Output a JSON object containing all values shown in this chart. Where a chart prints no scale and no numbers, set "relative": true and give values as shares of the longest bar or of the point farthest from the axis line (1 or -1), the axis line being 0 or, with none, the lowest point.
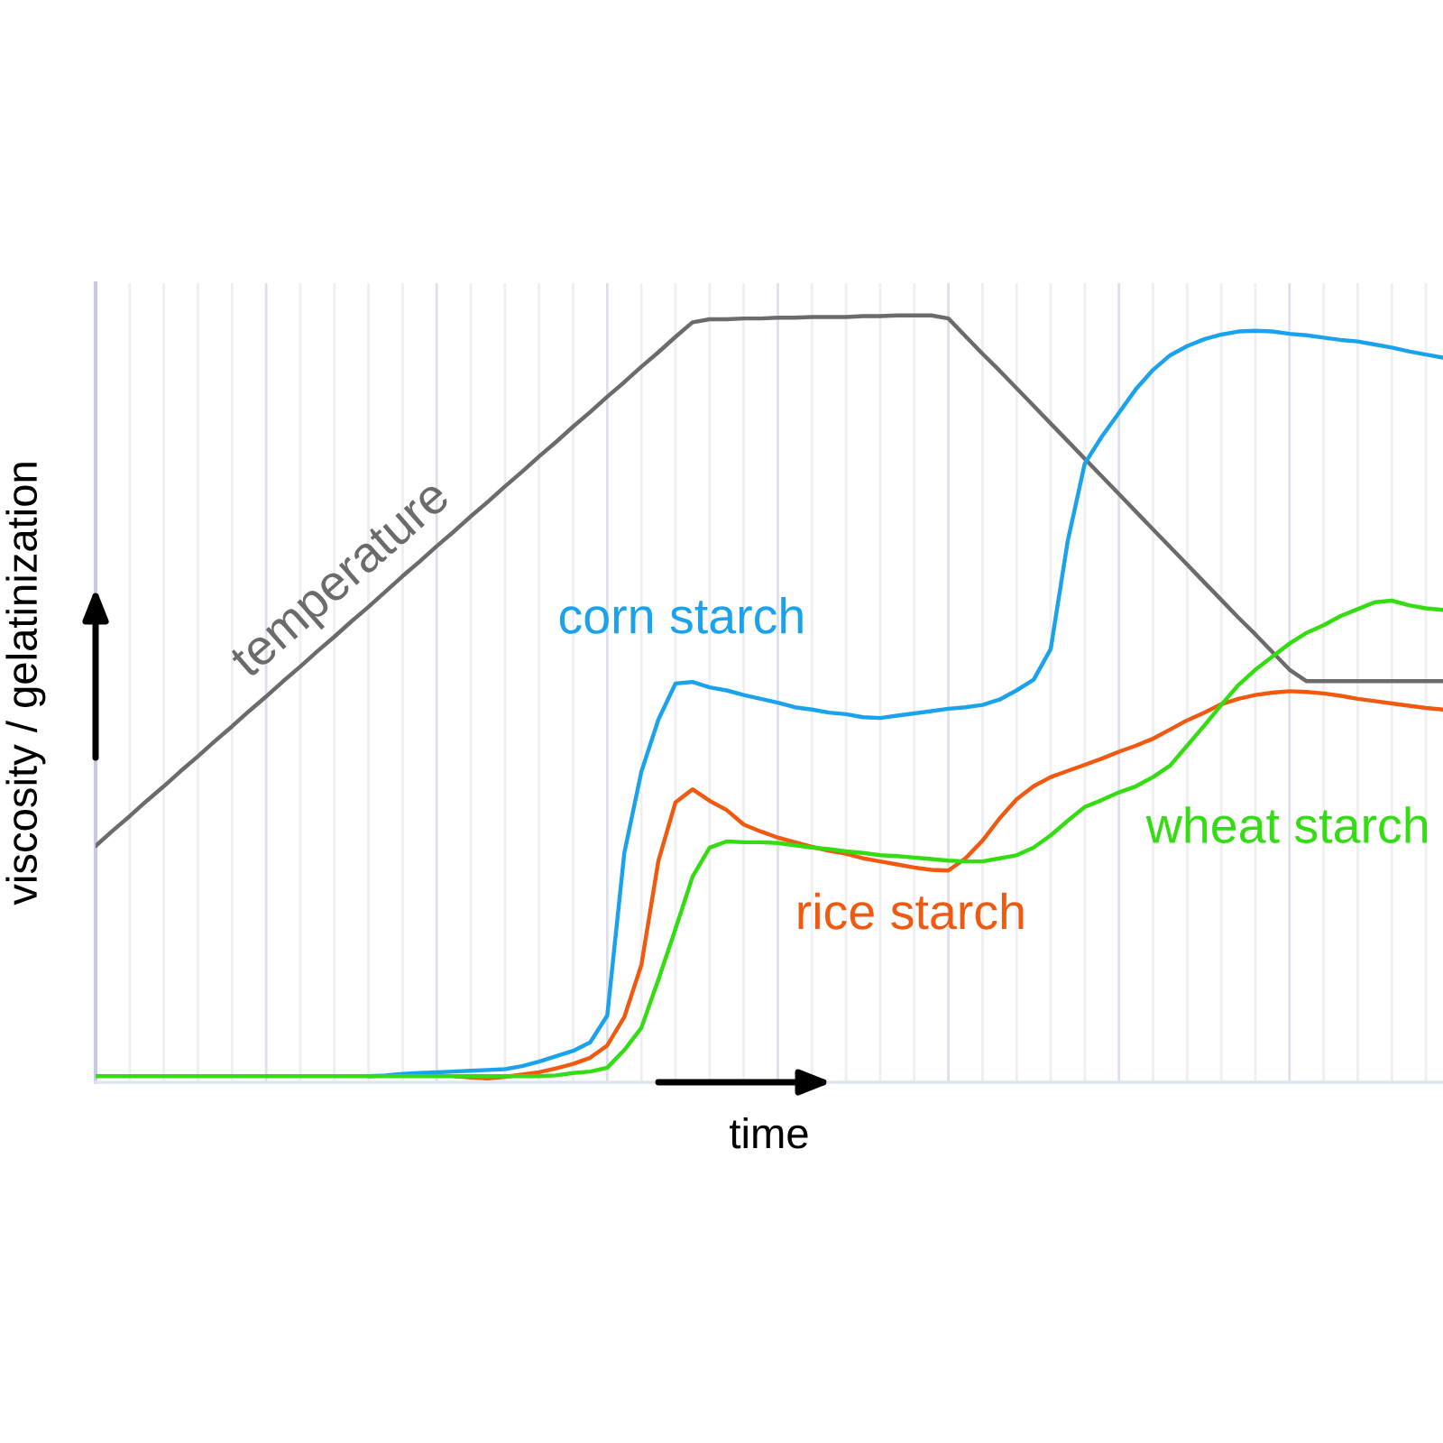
{
  "chart_data": {
    "type": "line",
    "relative": true,
    "grid": "x",
    "tick_labels": false,
    "xlabel": "time",
    "ylabel": "viscosity / gelatinization",
    "categories": [
      null,
      null,
      null,
      null,
      null,
      null,
      null,
      null,
      null,
      null,
      null,
      null,
      null,
      null,
      null,
      null,
      null,
      null,
      null,
      null,
      null,
      null,
      null,
      null,
      null,
      null,
      null,
      null,
      null,
      null,
      null,
      null,
      null,
      null,
      null,
      null,
      null,
      null,
      null,
      null,
      null,
      null,
      null,
      null,
      null,
      null,
      null,
      null,
      null,
      null,
      null,
      null,
      null,
      null,
      null,
      null,
      null,
      null,
      null,
      null,
      null,
      null,
      null,
      null,
      null,
      null,
      null,
      null,
      null,
      null,
      null,
      null,
      null,
      null,
      null,
      null,
      null,
      null,
      null,
      null
    ],
    "series": [
      {
        "name": "temperature",
        "color": "#6b6b6b",
        "values": [
          0.308,
          0.328,
          0.347,
          0.367,
          0.386,
          0.406,
          0.425,
          0.445,
          0.464,
          0.484,
          0.503,
          0.523,
          0.542,
          0.562,
          0.581,
          0.601,
          0.62,
          0.64,
          0.66,
          0.679,
          0.699,
          0.718,
          0.738,
          0.757,
          0.777,
          0.796,
          0.816,
          0.835,
          0.855,
          0.874,
          0.894,
          0.913,
          0.933,
          0.952,
          0.972,
          0.991,
          0.995,
          0.995,
          0.996,
          0.996,
          0.997,
          0.997,
          0.998,
          0.998,
          0.998,
          0.999,
          0.999,
          1.0,
          1.0,
          1.0,
          0.996,
          0.973,
          0.95,
          0.928,
          0.905,
          0.882,
          0.859,
          0.836,
          0.813,
          0.79,
          0.767,
          0.744,
          0.721,
          0.698,
          0.675,
          0.652,
          0.629,
          0.606,
          0.584,
          0.561,
          0.538,
          0.523,
          0.523,
          0.523,
          0.523,
          0.523,
          0.523,
          0.523,
          0.523,
          0.523
        ]
      },
      {
        "name": "corn starch",
        "color": "#1aa3ec",
        "values": [
          null,
          null,
          null,
          null,
          null,
          null,
          null,
          null,
          null,
          null,
          null,
          null,
          null,
          null,
          null,
          null,
          0.008,
          0.009,
          0.011,
          0.012,
          0.013,
          0.014,
          0.015,
          0.016,
          0.017,
          0.021,
          0.027,
          0.034,
          0.041,
          0.052,
          0.087,
          0.299,
          0.405,
          0.473,
          0.52,
          0.522,
          0.515,
          0.511,
          0.505,
          0.5,
          0.495,
          0.489,
          0.486,
          0.482,
          0.48,
          0.476,
          0.475,
          0.478,
          0.481,
          0.484,
          0.487,
          0.489,
          0.492,
          0.499,
          0.511,
          0.525,
          0.565,
          0.706,
          0.807,
          0.842,
          0.873,
          0.904,
          0.929,
          0.948,
          0.96,
          0.969,
          0.975,
          0.979,
          0.98,
          0.979,
          0.976,
          0.974,
          0.971,
          0.968,
          0.966,
          0.962,
          0.958,
          0.953,
          0.949,
          0.945
        ]
      },
      {
        "name": "rice starch",
        "color": "#f05a10",
        "values": [
          null,
          null,
          null,
          null,
          null,
          null,
          null,
          null,
          null,
          null,
          null,
          null,
          null,
          null,
          null,
          null,
          null,
          null,
          null,
          null,
          null,
          0.008,
          0.006,
          0.005,
          0.007,
          0.01,
          0.013,
          0.018,
          0.024,
          0.032,
          0.048,
          0.085,
          0.153,
          0.289,
          0.365,
          0.382,
          0.367,
          0.355,
          0.336,
          0.327,
          0.319,
          0.313,
          0.307,
          0.302,
          0.298,
          0.292,
          0.288,
          0.284,
          0.28,
          0.277,
          0.276,
          0.292,
          0.315,
          0.344,
          0.369,
          0.386,
          0.398,
          0.406,
          0.414,
          0.422,
          0.431,
          0.439,
          0.448,
          0.46,
          0.472,
          0.482,
          0.493,
          0.5,
          0.505,
          0.508,
          0.51,
          0.509,
          0.507,
          0.504,
          0.5,
          0.497,
          0.494,
          0.491,
          0.488,
          0.486
        ]
      },
      {
        "name": "wheat starch",
        "color": "#33dd11",
        "values": [
          0.008,
          0.008,
          0.008,
          0.008,
          0.008,
          0.008,
          0.008,
          0.008,
          0.008,
          0.008,
          0.008,
          0.008,
          0.008,
          0.008,
          0.008,
          0.008,
          0.008,
          0.008,
          0.008,
          0.008,
          0.008,
          0.008,
          0.008,
          0.008,
          0.008,
          0.008,
          0.008,
          0.009,
          0.012,
          0.014,
          0.019,
          0.042,
          0.071,
          0.134,
          0.2,
          0.268,
          0.306,
          0.314,
          0.313,
          0.313,
          0.312,
          0.309,
          0.306,
          0.304,
          0.301,
          0.299,
          0.296,
          0.295,
          0.293,
          0.291,
          0.289,
          0.288,
          0.288,
          0.292,
          0.296,
          0.306,
          0.322,
          0.341,
          0.359,
          0.368,
          0.378,
          0.386,
          0.398,
          0.413,
          0.439,
          0.465,
          0.492,
          0.518,
          0.538,
          0.555,
          0.572,
          0.586,
          0.596,
          0.608,
          0.617,
          0.626,
          0.628,
          0.622,
          0.618,
          0.616
        ]
      }
    ]
  }
}
